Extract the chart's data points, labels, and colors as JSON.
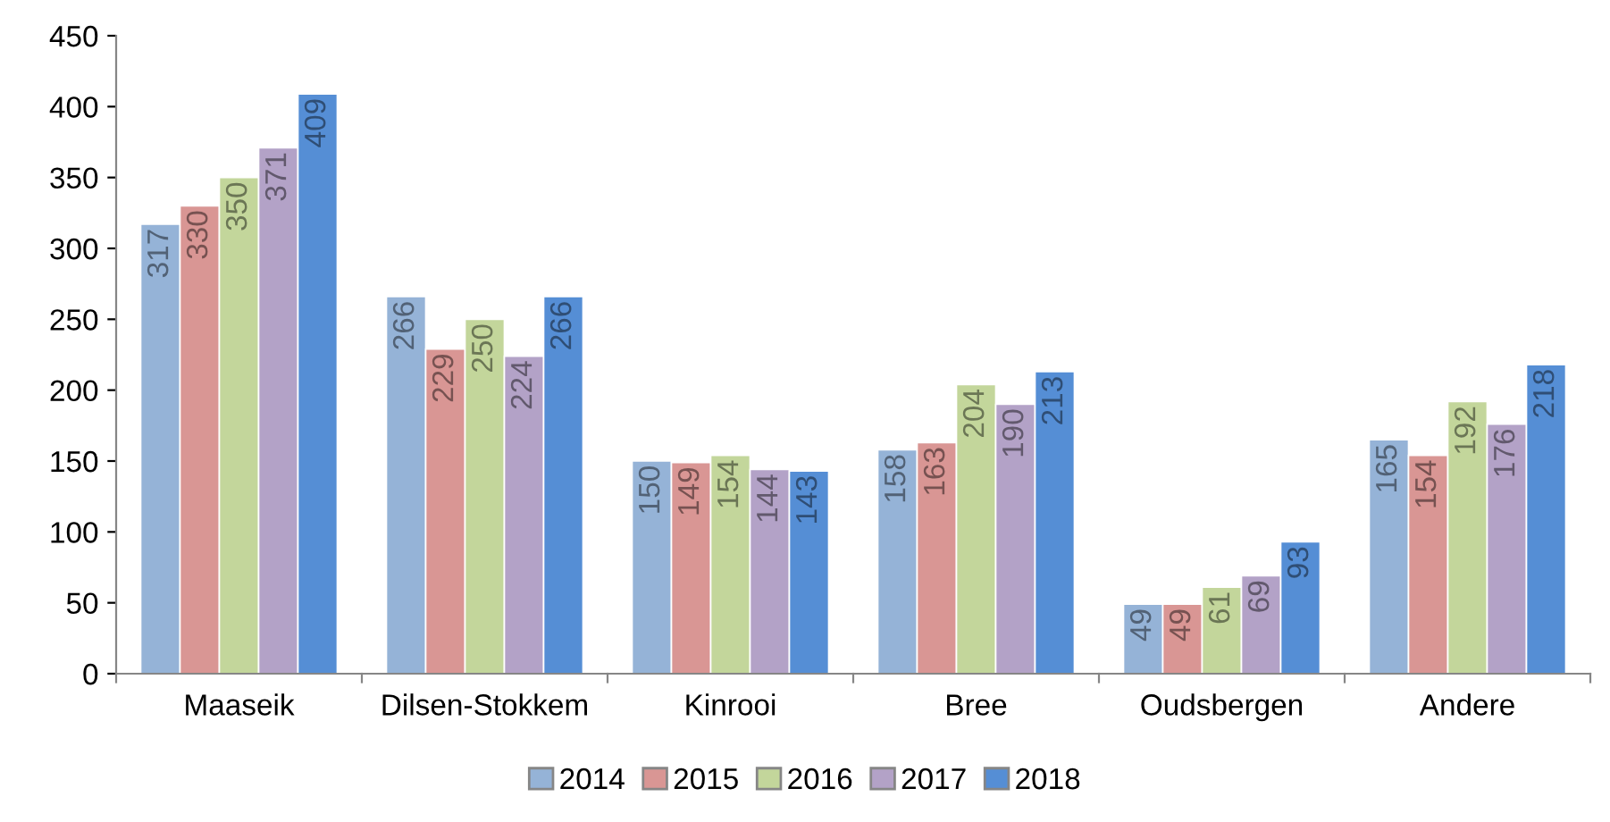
{
  "chart_data": {
    "type": "bar",
    "categories": [
      "Maaseik",
      "Dilsen-Stokkem",
      "Kinrooi",
      "Bree",
      "Oudsbergen",
      "Andere"
    ],
    "series": [
      {
        "name": "2014",
        "color": "#95b3d7",
        "values": [
          317,
          266,
          150,
          158,
          49,
          165
        ]
      },
      {
        "name": "2015",
        "color": "#d99694",
        "values": [
          330,
          229,
          149,
          163,
          49,
          154
        ]
      },
      {
        "name": "2016",
        "color": "#c3d69b",
        "values": [
          350,
          250,
          154,
          204,
          61,
          192
        ]
      },
      {
        "name": "2017",
        "color": "#b3a2c7",
        "values": [
          371,
          224,
          144,
          190,
          69,
          176
        ]
      },
      {
        "name": "2018",
        "color": "#558ed5",
        "values": [
          409,
          266,
          143,
          213,
          93,
          218
        ]
      }
    ],
    "ylim": [
      0,
      450
    ],
    "yticks": [
      0,
      50,
      100,
      150,
      200,
      250,
      300,
      350,
      400,
      450
    ],
    "data_labels": true,
    "grid": false,
    "legend": "bottom"
  }
}
